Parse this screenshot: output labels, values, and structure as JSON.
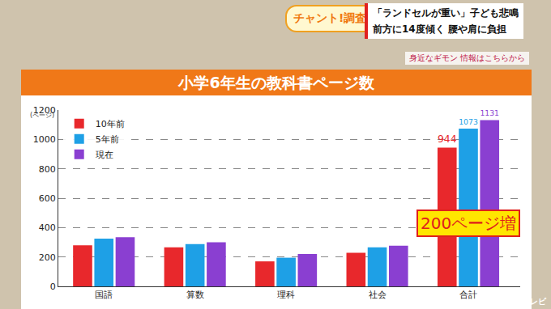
{
  "broadcast": {
    "program": "チャント!調査隊",
    "headline": [
      "「ランドセルが重い」子ども悲鳴",
      "前方に14度傾く 腰や肩に負担"
    ],
    "ticker": "身近なギモン 情報はこちらから",
    "channel": "CBCテレビ"
  },
  "chart_data": {
    "type": "bar",
    "title": "小学6年生の教科書ページ数",
    "y_label": "(ページ)",
    "categories": [
      "国語",
      "算数",
      "理科",
      "社会",
      "合計"
    ],
    "series": [
      {
        "name": "10年前",
        "color": "#e8282c",
        "values": [
          280,
          265,
          170,
          229,
          944
        ],
        "value_labels": [
          null,
          null,
          null,
          null,
          "944"
        ]
      },
      {
        "name": "5年前",
        "color": "#1ea0e6",
        "values": [
          325,
          287,
          195,
          266,
          1073
        ],
        "value_labels": [
          null,
          null,
          null,
          null,
          "1073"
        ]
      },
      {
        "name": "現在",
        "color": "#8a3fd1",
        "values": [
          335,
          300,
          220,
          276,
          1131
        ],
        "value_labels": [
          null,
          null,
          null,
          null,
          "1131"
        ]
      }
    ],
    "ylim": [
      0,
      1200
    ],
    "yticks": [
      0,
      200,
      400,
      600,
      800,
      1000,
      1200
    ],
    "grid": true,
    "legend": "upper left",
    "annotations": [
      {
        "text": "200ページ増",
        "category": "合計"
      }
    ]
  }
}
